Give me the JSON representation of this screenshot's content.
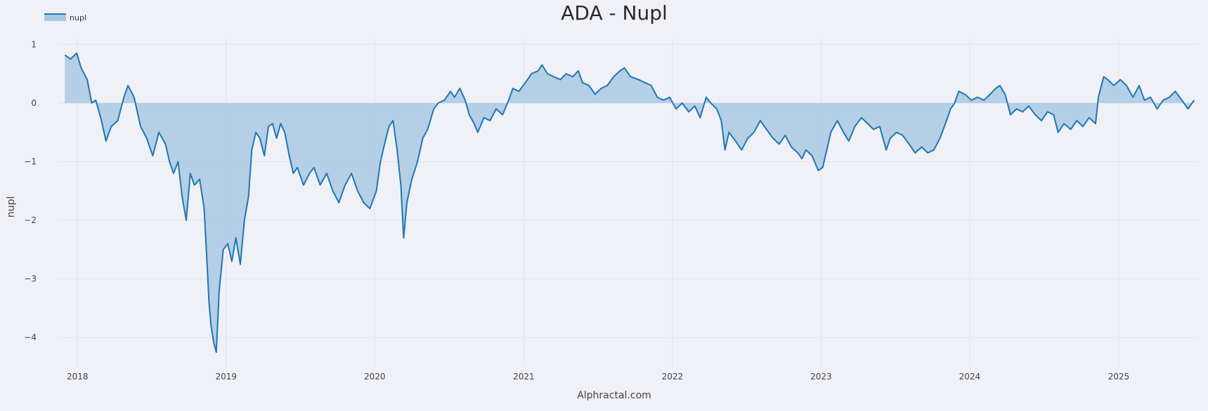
{
  "chart_data": {
    "type": "area",
    "title": "ADA - Nupl",
    "xlabel": "Alphractal.com",
    "ylabel": "nupl",
    "x_ticks": [
      "2018",
      "2019",
      "2020",
      "2021",
      "2022",
      "2023",
      "2024",
      "2025"
    ],
    "y_ticks": [
      1,
      0,
      -1,
      -2,
      -3,
      -4
    ],
    "y_tick_labels": [
      "1",
      "0",
      "−1",
      "−2",
      "−3",
      "−4"
    ],
    "xlim": [
      "2017-11-15",
      "2025-07-15"
    ],
    "ylim": [
      -4.5,
      1.1
    ],
    "grid": true,
    "legend_position": "top-left",
    "colors": {
      "line": "#1f77b4",
      "fill": "#a9c9e3",
      "background": "#f0f1f6"
    },
    "series": [
      {
        "name": "nupl",
        "points": [
          [
            "2017-12-01",
            0.82
          ],
          [
            "2017-12-15",
            0.75
          ],
          [
            "2017-12-30",
            0.85
          ],
          [
            "2018-01-10",
            0.6
          ],
          [
            "2018-01-25",
            0.4
          ],
          [
            "2018-02-05",
            0.0
          ],
          [
            "2018-02-15",
            0.05
          ],
          [
            "2018-03-01",
            -0.3
          ],
          [
            "2018-03-12",
            -0.65
          ],
          [
            "2018-03-25",
            -0.4
          ],
          [
            "2018-04-10",
            -0.3
          ],
          [
            "2018-04-25",
            0.1
          ],
          [
            "2018-05-05",
            0.3
          ],
          [
            "2018-05-20",
            0.1
          ],
          [
            "2018-06-05",
            -0.4
          ],
          [
            "2018-06-20",
            -0.6
          ],
          [
            "2018-07-05",
            -0.9
          ],
          [
            "2018-07-20",
            -0.5
          ],
          [
            "2018-08-05",
            -0.7
          ],
          [
            "2018-08-15",
            -1.0
          ],
          [
            "2018-08-25",
            -1.2
          ],
          [
            "2018-09-05",
            -1.0
          ],
          [
            "2018-09-15",
            -1.6
          ],
          [
            "2018-09-25",
            -2.0
          ],
          [
            "2018-10-05",
            -1.2
          ],
          [
            "2018-10-15",
            -1.4
          ],
          [
            "2018-10-28",
            -1.3
          ],
          [
            "2018-11-08",
            -1.8
          ],
          [
            "2018-11-15",
            -2.7
          ],
          [
            "2018-11-20",
            -3.4
          ],
          [
            "2018-11-25",
            -3.8
          ],
          [
            "2018-12-02",
            -4.1
          ],
          [
            "2018-12-08",
            -4.25
          ],
          [
            "2018-12-15",
            -3.2
          ],
          [
            "2018-12-25",
            -2.5
          ],
          [
            "2019-01-05",
            -2.4
          ],
          [
            "2019-01-15",
            -2.7
          ],
          [
            "2019-01-25",
            -2.3
          ],
          [
            "2019-02-05",
            -2.75
          ],
          [
            "2019-02-15",
            -2.0
          ],
          [
            "2019-02-25",
            -1.6
          ],
          [
            "2019-03-05",
            -0.8
          ],
          [
            "2019-03-15",
            -0.5
          ],
          [
            "2019-03-25",
            -0.6
          ],
          [
            "2019-04-05",
            -0.9
          ],
          [
            "2019-04-15",
            -0.4
          ],
          [
            "2019-04-25",
            -0.35
          ],
          [
            "2019-05-05",
            -0.6
          ],
          [
            "2019-05-15",
            -0.35
          ],
          [
            "2019-05-25",
            -0.5
          ],
          [
            "2019-06-05",
            -0.9
          ],
          [
            "2019-06-15",
            -1.2
          ],
          [
            "2019-06-25",
            -1.1
          ],
          [
            "2019-07-10",
            -1.4
          ],
          [
            "2019-07-25",
            -1.2
          ],
          [
            "2019-08-05",
            -1.1
          ],
          [
            "2019-08-20",
            -1.4
          ],
          [
            "2019-09-05",
            -1.2
          ],
          [
            "2019-09-20",
            -1.5
          ],
          [
            "2019-10-05",
            -1.7
          ],
          [
            "2019-10-20",
            -1.4
          ],
          [
            "2019-11-05",
            -1.2
          ],
          [
            "2019-11-20",
            -1.5
          ],
          [
            "2019-12-05",
            -1.7
          ],
          [
            "2019-12-20",
            -1.8
          ],
          [
            "2020-01-05",
            -1.5
          ],
          [
            "2020-01-15",
            -1.0
          ],
          [
            "2020-01-25",
            -0.7
          ],
          [
            "2020-02-05",
            -0.4
          ],
          [
            "2020-02-15",
            -0.3
          ],
          [
            "2020-02-25",
            -0.8
          ],
          [
            "2020-03-05",
            -1.4
          ],
          [
            "2020-03-12",
            -2.3
          ],
          [
            "2020-03-20",
            -1.7
          ],
          [
            "2020-04-01",
            -1.3
          ],
          [
            "2020-04-15",
            -1.0
          ],
          [
            "2020-04-28",
            -0.6
          ],
          [
            "2020-05-10",
            -0.45
          ],
          [
            "2020-05-25",
            -0.1
          ],
          [
            "2020-06-05",
            0.0
          ],
          [
            "2020-06-20",
            0.05
          ],
          [
            "2020-07-05",
            0.2
          ],
          [
            "2020-07-15",
            0.1
          ],
          [
            "2020-07-28",
            0.25
          ],
          [
            "2020-08-10",
            0.05
          ],
          [
            "2020-08-20",
            -0.2
          ],
          [
            "2020-09-01",
            -0.35
          ],
          [
            "2020-09-10",
            -0.5
          ],
          [
            "2020-09-25",
            -0.25
          ],
          [
            "2020-10-10",
            -0.3
          ],
          [
            "2020-10-25",
            -0.1
          ],
          [
            "2020-11-10",
            -0.2
          ],
          [
            "2020-11-25",
            0.05
          ],
          [
            "2020-12-05",
            0.25
          ],
          [
            "2020-12-20",
            0.2
          ],
          [
            "2021-01-05",
            0.35
          ],
          [
            "2021-01-20",
            0.5
          ],
          [
            "2021-02-05",
            0.55
          ],
          [
            "2021-02-15",
            0.65
          ],
          [
            "2021-02-28",
            0.5
          ],
          [
            "2021-03-15",
            0.45
          ],
          [
            "2021-04-01",
            0.4
          ],
          [
            "2021-04-15",
            0.5
          ],
          [
            "2021-05-01",
            0.45
          ],
          [
            "2021-05-15",
            0.55
          ],
          [
            "2021-05-25",
            0.35
          ],
          [
            "2021-06-10",
            0.3
          ],
          [
            "2021-06-25",
            0.15
          ],
          [
            "2021-07-10",
            0.25
          ],
          [
            "2021-07-25",
            0.3
          ],
          [
            "2021-08-10",
            0.45
          ],
          [
            "2021-08-25",
            0.55
          ],
          [
            "2021-09-05",
            0.6
          ],
          [
            "2021-09-20",
            0.45
          ],
          [
            "2021-10-10",
            0.4
          ],
          [
            "2021-10-25",
            0.35
          ],
          [
            "2021-11-10",
            0.3
          ],
          [
            "2021-11-25",
            0.1
          ],
          [
            "2021-12-10",
            0.05
          ],
          [
            "2021-12-25",
            0.1
          ],
          [
            "2022-01-10",
            -0.1
          ],
          [
            "2022-01-25",
            0.0
          ],
          [
            "2022-02-10",
            -0.15
          ],
          [
            "2022-02-25",
            -0.05
          ],
          [
            "2022-03-10",
            -0.25
          ],
          [
            "2022-03-25",
            0.1
          ],
          [
            "2022-04-05",
            0.0
          ],
          [
            "2022-04-20",
            -0.1
          ],
          [
            "2022-05-01",
            -0.3
          ],
          [
            "2022-05-10",
            -0.8
          ],
          [
            "2022-05-20",
            -0.5
          ],
          [
            "2022-06-05",
            -0.65
          ],
          [
            "2022-06-20",
            -0.8
          ],
          [
            "2022-07-05",
            -0.6
          ],
          [
            "2022-07-20",
            -0.5
          ],
          [
            "2022-08-05",
            -0.3
          ],
          [
            "2022-08-20",
            -0.45
          ],
          [
            "2022-09-05",
            -0.6
          ],
          [
            "2022-09-20",
            -0.7
          ],
          [
            "2022-10-05",
            -0.55
          ],
          [
            "2022-10-20",
            -0.75
          ],
          [
            "2022-11-05",
            -0.85
          ],
          [
            "2022-11-15",
            -0.95
          ],
          [
            "2022-11-25",
            -0.8
          ],
          [
            "2022-12-10",
            -0.9
          ],
          [
            "2022-12-25",
            -1.15
          ],
          [
            "2023-01-05",
            -1.1
          ],
          [
            "2023-01-15",
            -0.8
          ],
          [
            "2023-01-25",
            -0.5
          ],
          [
            "2023-02-10",
            -0.3
          ],
          [
            "2023-02-25",
            -0.5
          ],
          [
            "2023-03-10",
            -0.65
          ],
          [
            "2023-03-25",
            -0.4
          ],
          [
            "2023-04-10",
            -0.25
          ],
          [
            "2023-04-25",
            -0.35
          ],
          [
            "2023-05-10",
            -0.45
          ],
          [
            "2023-05-25",
            -0.4
          ],
          [
            "2023-06-10",
            -0.8
          ],
          [
            "2023-06-20",
            -0.6
          ],
          [
            "2023-07-05",
            -0.5
          ],
          [
            "2023-07-20",
            -0.55
          ],
          [
            "2023-08-05",
            -0.7
          ],
          [
            "2023-08-20",
            -0.85
          ],
          [
            "2023-09-05",
            -0.75
          ],
          [
            "2023-09-20",
            -0.85
          ],
          [
            "2023-10-05",
            -0.8
          ],
          [
            "2023-10-20",
            -0.6
          ],
          [
            "2023-11-05",
            -0.3
          ],
          [
            "2023-11-15",
            -0.1
          ],
          [
            "2023-11-25",
            0.0
          ],
          [
            "2023-12-05",
            0.2
          ],
          [
            "2023-12-20",
            0.15
          ],
          [
            "2024-01-05",
            0.05
          ],
          [
            "2024-01-20",
            0.1
          ],
          [
            "2024-02-05",
            0.05
          ],
          [
            "2024-02-20",
            0.15
          ],
          [
            "2024-03-05",
            0.25
          ],
          [
            "2024-03-15",
            0.3
          ],
          [
            "2024-03-28",
            0.15
          ],
          [
            "2024-04-10",
            -0.2
          ],
          [
            "2024-04-25",
            -0.1
          ],
          [
            "2024-05-10",
            -0.15
          ],
          [
            "2024-05-25",
            -0.05
          ],
          [
            "2024-06-10",
            -0.2
          ],
          [
            "2024-06-25",
            -0.3
          ],
          [
            "2024-07-10",
            -0.15
          ],
          [
            "2024-07-25",
            -0.2
          ],
          [
            "2024-08-05",
            -0.5
          ],
          [
            "2024-08-20",
            -0.35
          ],
          [
            "2024-09-05",
            -0.45
          ],
          [
            "2024-09-20",
            -0.3
          ],
          [
            "2024-10-05",
            -0.4
          ],
          [
            "2024-10-20",
            -0.25
          ],
          [
            "2024-11-05",
            -0.35
          ],
          [
            "2024-11-12",
            0.1
          ],
          [
            "2024-11-25",
            0.45
          ],
          [
            "2024-12-05",
            0.4
          ],
          [
            "2024-12-20",
            0.3
          ],
          [
            "2025-01-05",
            0.4
          ],
          [
            "2025-01-20",
            0.3
          ],
          [
            "2025-02-05",
            0.1
          ],
          [
            "2025-02-20",
            0.3
          ],
          [
            "2025-03-05",
            0.05
          ],
          [
            "2025-03-20",
            0.1
          ],
          [
            "2025-04-05",
            -0.1
          ],
          [
            "2025-04-20",
            0.05
          ],
          [
            "2025-05-05",
            0.1
          ],
          [
            "2025-05-20",
            0.2
          ],
          [
            "2025-06-05",
            0.05
          ],
          [
            "2025-06-20",
            -0.1
          ],
          [
            "2025-07-05",
            0.05
          ]
        ]
      }
    ]
  }
}
